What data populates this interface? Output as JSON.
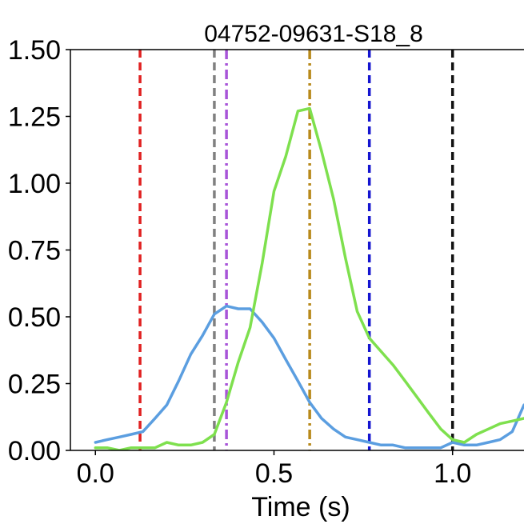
{
  "chart_data": {
    "type": "line",
    "title": "04752-09631-S18_8",
    "xlabel": "Time (s)",
    "ylabel": "",
    "xlim": [
      -0.07,
      1.2
    ],
    "ylim": [
      0.0,
      1.5
    ],
    "grid": false,
    "x_ticks": [
      {
        "value": 0.0,
        "label": "0.0"
      },
      {
        "value": 0.5,
        "label": "0.5"
      },
      {
        "value": 1.0,
        "label": "1.0"
      }
    ],
    "y_ticks": [
      {
        "value": 0.0,
        "label": "0.00"
      },
      {
        "value": 0.25,
        "label": "0.25"
      },
      {
        "value": 0.5,
        "label": "0.50"
      },
      {
        "value": 0.75,
        "label": "0.75"
      },
      {
        "value": 1.0,
        "label": "1.00"
      },
      {
        "value": 1.25,
        "label": "1.25"
      },
      {
        "value": 1.5,
        "label": "1.50"
      }
    ],
    "series": [
      {
        "color": "#5b9ee0",
        "x": [
          0.0,
          0.033,
          0.067,
          0.1,
          0.133,
          0.167,
          0.2,
          0.233,
          0.267,
          0.3,
          0.333,
          0.367,
          0.4,
          0.433,
          0.467,
          0.5,
          0.533,
          0.567,
          0.6,
          0.633,
          0.667,
          0.7,
          0.733,
          0.767,
          0.8,
          0.833,
          0.867,
          0.9,
          0.933,
          0.967,
          1.0,
          1.033,
          1.067,
          1.1,
          1.133,
          1.167,
          1.2
        ],
        "y": [
          0.03,
          0.04,
          0.05,
          0.06,
          0.07,
          0.12,
          0.17,
          0.26,
          0.36,
          0.43,
          0.51,
          0.54,
          0.53,
          0.53,
          0.48,
          0.42,
          0.34,
          0.26,
          0.18,
          0.12,
          0.08,
          0.05,
          0.04,
          0.03,
          0.02,
          0.02,
          0.01,
          0.01,
          0.01,
          0.01,
          0.03,
          0.02,
          0.02,
          0.03,
          0.04,
          0.07,
          0.17
        ]
      },
      {
        "color": "#7ee04e",
        "x": [
          0.0,
          0.033,
          0.067,
          0.1,
          0.133,
          0.167,
          0.2,
          0.233,
          0.267,
          0.3,
          0.333,
          0.367,
          0.4,
          0.433,
          0.467,
          0.5,
          0.533,
          0.567,
          0.6,
          0.633,
          0.667,
          0.7,
          0.733,
          0.767,
          0.8,
          0.833,
          0.867,
          0.9,
          0.933,
          0.967,
          1.0,
          1.033,
          1.067,
          1.1,
          1.133,
          1.167,
          1.2
        ],
        "y": [
          0.01,
          0.01,
          0.0,
          0.01,
          0.01,
          0.01,
          0.03,
          0.02,
          0.02,
          0.03,
          0.06,
          0.18,
          0.33,
          0.46,
          0.7,
          0.97,
          1.1,
          1.27,
          1.28,
          1.12,
          0.94,
          0.72,
          0.52,
          0.42,
          0.37,
          0.32,
          0.26,
          0.2,
          0.14,
          0.08,
          0.04,
          0.03,
          0.06,
          0.08,
          0.1,
          0.11,
          0.12
        ]
      }
    ],
    "vlines": [
      {
        "x": 0.125,
        "color": "#e02020",
        "style": "dashed"
      },
      {
        "x": 0.333,
        "color": "#808080",
        "style": "dashed"
      },
      {
        "x": 0.367,
        "color": "#a855d8",
        "style": "dashdot"
      },
      {
        "x": 0.6,
        "color": "#b8891a",
        "style": "dashdot"
      },
      {
        "x": 0.767,
        "color": "#1515d0",
        "style": "dashed"
      },
      {
        "x": 1.0,
        "color": "#111111",
        "style": "dashed"
      }
    ]
  }
}
